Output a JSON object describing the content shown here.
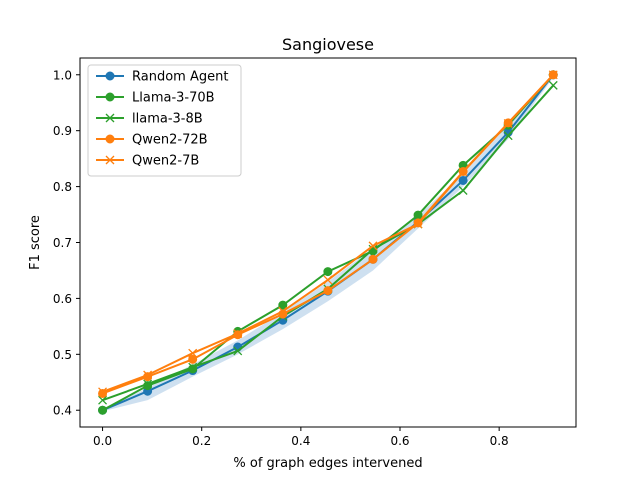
{
  "chart_data": {
    "type": "line",
    "title": "Sangiovese",
    "xlabel": "% of graph edges intervened",
    "ylabel": "F1 score",
    "xlim": [
      -0.0455,
      0.955
    ],
    "ylim": [
      0.37,
      1.03
    ],
    "x_ticks": [
      0.0,
      0.2,
      0.4,
      0.6,
      0.8
    ],
    "x_tick_labels": [
      "0.0",
      "0.2",
      "0.4",
      "0.6",
      "0.8"
    ],
    "y_ticks": [
      0.4,
      0.5,
      0.6,
      0.7,
      0.8,
      0.9,
      1.0
    ],
    "y_tick_labels": [
      "0.4",
      "0.5",
      "0.6",
      "0.7",
      "0.8",
      "0.9",
      "1.0"
    ],
    "x": [
      0.0,
      0.0909,
      0.1818,
      0.2727,
      0.3636,
      0.4545,
      0.5455,
      0.6364,
      0.7273,
      0.8182,
      0.9091
    ],
    "band": {
      "lower": [
        0.398,
        0.418,
        0.46,
        0.5,
        0.545,
        0.595,
        0.65,
        0.725,
        0.8,
        0.885,
        0.995
      ],
      "upper": [
        0.402,
        0.44,
        0.482,
        0.525,
        0.575,
        0.63,
        0.69,
        0.748,
        0.823,
        0.91,
        1.0
      ],
      "color": "#aecbe6"
    },
    "series": [
      {
        "name": "Random Agent",
        "color": "#1f77b4",
        "marker": "circle",
        "values": [
          0.4,
          0.434,
          0.471,
          0.513,
          0.561,
          0.613,
          0.67,
          0.737,
          0.811,
          0.897,
          1.0
        ]
      },
      {
        "name": "Llama-3-70B",
        "color": "#2ca02c",
        "marker": "circle",
        "values": [
          0.4,
          0.444,
          0.474,
          0.541,
          0.588,
          0.648,
          0.685,
          0.749,
          0.838,
          0.91,
          1.0
        ]
      },
      {
        "name": "llama-3-8B",
        "color": "#2ca02c",
        "marker": "x",
        "values": [
          0.418,
          0.447,
          0.477,
          0.506,
          0.568,
          0.617,
          0.688,
          0.733,
          0.793,
          0.891,
          0.981
        ]
      },
      {
        "name": "Qwen2-72B",
        "color": "#ff7f0e",
        "marker": "circle",
        "values": [
          0.43,
          0.46,
          0.491,
          0.535,
          0.572,
          0.614,
          0.67,
          0.735,
          0.827,
          0.914,
          1.0
        ]
      },
      {
        "name": "Qwen2-7B",
        "color": "#ff7f0e",
        "marker": "x",
        "values": [
          0.433,
          0.463,
          0.502,
          0.537,
          0.577,
          0.633,
          0.694,
          0.733,
          0.826,
          0.913,
          1.0
        ]
      }
    ],
    "legend_position": "top-left",
    "grid": false
  }
}
